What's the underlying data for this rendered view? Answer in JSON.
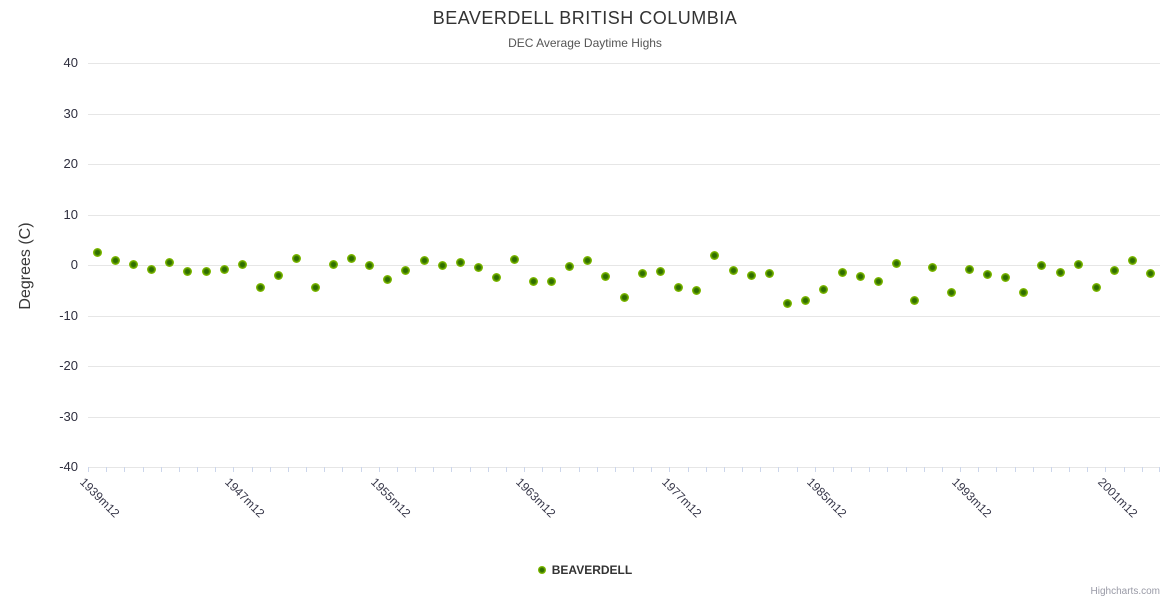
{
  "chart": {
    "title": "BEAVERDELL BRITISH COLUMBIA",
    "subtitle": "DEC Average Daytime Highs",
    "credits": "Highcharts.com"
  },
  "legend": {
    "label": "BEAVERDELL",
    "marker_color": "#7db800"
  },
  "chart_data": {
    "type": "scatter",
    "title": "BEAVERDELL BRITISH COLUMBIA",
    "subtitle": "DEC Average Daytime Highs",
    "xlabel": "",
    "ylabel": "Degrees (C)",
    "ylim": [
      -40,
      40
    ],
    "y_ticks": [
      40,
      30,
      20,
      10,
      0,
      -10,
      -20,
      -30,
      -40
    ],
    "grid": "horizontal-only",
    "legend_position": "bottom-center",
    "series_name": "BEAVERDELL",
    "n_points": 59,
    "marker": {
      "outer_color": "#7db800",
      "inner_color": "#2f6e00",
      "shape": "circle"
    },
    "x_tick_labels": [
      {
        "index": 0,
        "label": "1939m12"
      },
      {
        "index": 8,
        "label": "1947m12"
      },
      {
        "index": 16,
        "label": "1955m12"
      },
      {
        "index": 24,
        "label": "1963m12"
      },
      {
        "index": 32,
        "label": "1977m12"
      },
      {
        "index": 40,
        "label": "1985m12"
      },
      {
        "index": 48,
        "label": "1993m12"
      },
      {
        "index": 56,
        "label": "2001m12"
      }
    ],
    "values": [
      2.5,
      0.8,
      0.1,
      -0.9,
      0.5,
      -1.3,
      -1.3,
      -0.9,
      0.1,
      -4.4,
      -2.1,
      1.2,
      -4.4,
      0.1,
      1.2,
      0.0,
      -2.9,
      -1.1,
      0.8,
      0.0,
      0.5,
      -0.5,
      -2.4,
      1.1,
      -3.2,
      -3.3,
      -0.3,
      0.9,
      -2.2,
      -6.5,
      -1.7,
      -1.2,
      -4.5,
      -5.0,
      1.9,
      -1.0,
      -2.1,
      -1.7,
      -7.6,
      -7.0,
      -4.9,
      -1.5,
      -2.3,
      -3.2,
      0.3,
      -7.1,
      -0.5,
      -5.5,
      -0.9,
      -1.8,
      -2.5,
      -5.4,
      0.0,
      -1.5,
      0.1,
      -4.4,
      -1.0,
      0.8,
      -1.7
    ]
  }
}
